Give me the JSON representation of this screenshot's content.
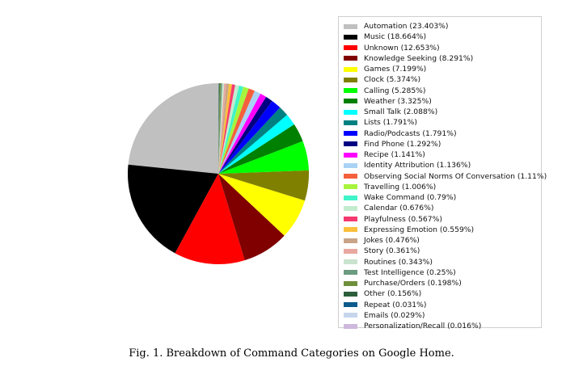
{
  "caption": "Fig. 1.  Breakdown of Command Categories on Google Home.",
  "chart_data": {
    "type": "pie",
    "legend_position": "right",
    "start_angle_deg": 90,
    "direction": "counterclockwise",
    "slices": [
      {
        "label": "Automation (23.403%)",
        "value": 23.403,
        "color": "#c0c0c0"
      },
      {
        "label": "Music (18.664%)",
        "value": 18.664,
        "color": "#000000"
      },
      {
        "label": "Unknown (12.653%)",
        "value": 12.653,
        "color": "#ff0000"
      },
      {
        "label": "Knowledge Seeking (8.291%)",
        "value": 8.291,
        "color": "#800000"
      },
      {
        "label": "Games (7.199%)",
        "value": 7.199,
        "color": "#ffff00"
      },
      {
        "label": "Clock (5.374%)",
        "value": 5.374,
        "color": "#808000"
      },
      {
        "label": "Calling (5.285%)",
        "value": 5.285,
        "color": "#00ff00"
      },
      {
        "label": "Weather (3.325%)",
        "value": 3.325,
        "color": "#008000"
      },
      {
        "label": "Small Talk (2.088%)",
        "value": 2.088,
        "color": "#00ffff"
      },
      {
        "label": "Lists (1.791%)",
        "value": 1.791,
        "color": "#008080"
      },
      {
        "label": "Radio/Podcasts (1.791%)",
        "value": 1.791,
        "color": "#0000ff"
      },
      {
        "label": "Find Phone (1.292%)",
        "value": 1.292,
        "color": "#000080"
      },
      {
        "label": "Recipe (1.141%)",
        "value": 1.141,
        "color": "#ff00ff"
      },
      {
        "label": "Identity Attribution (1.136%)",
        "value": 1.136,
        "color": "#a9d2f5"
      },
      {
        "label": "Observing Social Norms Of Conversation (1.11%)",
        "value": 1.11,
        "color": "#f4603c"
      },
      {
        "label": "Travelling (1.006%)",
        "value": 1.006,
        "color": "#a6f43c"
      },
      {
        "label": "Wake Command (0.79%)",
        "value": 0.79,
        "color": "#3ff4c8"
      },
      {
        "label": "Calendar (0.676%)",
        "value": 0.676,
        "color": "#c3ecce"
      },
      {
        "label": "Playfulness (0.567%)",
        "value": 0.567,
        "color": "#f4396f"
      },
      {
        "label": "Expressing Emotion (0.559%)",
        "value": 0.559,
        "color": "#fbbf3c"
      },
      {
        "label": "Jokes (0.476%)",
        "value": 0.476,
        "color": "#c9a488"
      },
      {
        "label": "Story (0.361%)",
        "value": 0.361,
        "color": "#e8a8a0"
      },
      {
        "label": "Routines (0.343%)",
        "value": 0.343,
        "color": "#c9e3cf"
      },
      {
        "label": "Test Intelligence (0.25%)",
        "value": 0.25,
        "color": "#6b9b80"
      },
      {
        "label": "Purchase/Orders (0.198%)",
        "value": 0.198,
        "color": "#6f8f3c"
      },
      {
        "label": "Other (0.156%)",
        "value": 0.156,
        "color": "#2c5e3c"
      },
      {
        "label": "Repeat (0.031%)",
        "value": 0.031,
        "color": "#0d5a8c"
      },
      {
        "label": "Emails (0.029%)",
        "value": 0.029,
        "color": "#c5d6ec"
      },
      {
        "label": "Personalization/Recall (0.016%)",
        "value": 0.016,
        "color": "#ceb8dd"
      }
    ]
  }
}
